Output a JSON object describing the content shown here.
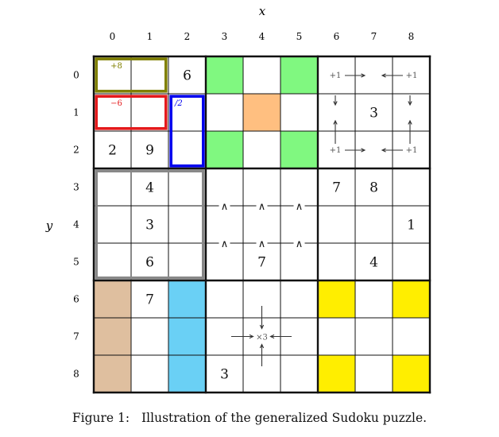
{
  "axes": {
    "x_label": "x",
    "y_label": "y",
    "col_labels": [
      "0",
      "1",
      "2",
      "3",
      "4",
      "5",
      "6",
      "7",
      "8"
    ],
    "row_labels": [
      "0",
      "1",
      "2",
      "3",
      "4",
      "5",
      "6",
      "7",
      "8"
    ]
  },
  "givens": [
    {
      "r": 0,
      "c": 2,
      "v": "6"
    },
    {
      "r": 1,
      "c": 7,
      "v": "3"
    },
    {
      "r": 2,
      "c": 0,
      "v": "2"
    },
    {
      "r": 2,
      "c": 1,
      "v": "9"
    },
    {
      "r": 3,
      "c": 1,
      "v": "4"
    },
    {
      "r": 3,
      "c": 6,
      "v": "7"
    },
    {
      "r": 3,
      "c": 7,
      "v": "8"
    },
    {
      "r": 4,
      "c": 1,
      "v": "3"
    },
    {
      "r": 4,
      "c": 8,
      "v": "1"
    },
    {
      "r": 5,
      "c": 1,
      "v": "6"
    },
    {
      "r": 5,
      "c": 4,
      "v": "7"
    },
    {
      "r": 5,
      "c": 7,
      "v": "4"
    },
    {
      "r": 6,
      "c": 1,
      "v": "7"
    },
    {
      "r": 8,
      "c": 3,
      "v": "3"
    }
  ],
  "colored_cells": [
    {
      "r": 0,
      "c": 3,
      "color": "#80f880"
    },
    {
      "r": 0,
      "c": 5,
      "color": "#80f880"
    },
    {
      "r": 2,
      "c": 3,
      "color": "#80f880"
    },
    {
      "r": 2,
      "c": 5,
      "color": "#80f880"
    },
    {
      "r": 1,
      "c": 4,
      "color": "#ffbf80"
    },
    {
      "r": 6,
      "c": 0,
      "color": "#dfbf9f"
    },
    {
      "r": 7,
      "c": 0,
      "color": "#dfbf9f"
    },
    {
      "r": 8,
      "c": 0,
      "color": "#dfbf9f"
    },
    {
      "r": 6,
      "c": 2,
      "color": "#6ad0f5"
    },
    {
      "r": 7,
      "c": 2,
      "color": "#6ad0f5"
    },
    {
      "r": 8,
      "c": 2,
      "color": "#6ad0f5"
    },
    {
      "r": 6,
      "c": 6,
      "color": "#ffee00"
    },
    {
      "r": 6,
      "c": 8,
      "color": "#ffee00"
    },
    {
      "r": 8,
      "c": 6,
      "color": "#ffee00"
    },
    {
      "r": 8,
      "c": 8,
      "color": "#ffee00"
    }
  ],
  "cages": [
    {
      "r0": 0,
      "c0": 0,
      "r1": 0,
      "c1": 1,
      "color": "#808000",
      "label": "+8",
      "label_color": "#808000"
    },
    {
      "r0": 1,
      "c0": 0,
      "r1": 1,
      "c1": 1,
      "color": "#e41a1c",
      "label": "−6",
      "label_color": "#e41a1c"
    },
    {
      "r0": 1,
      "c0": 2,
      "r1": 2,
      "c1": 2,
      "color": "#0000ee",
      "label": "/2",
      "label_color": "#0000ee"
    },
    {
      "r0": 3,
      "c0": 0,
      "r1": 5,
      "c1": 2,
      "color": "#888888",
      "label": "",
      "label_color": "#888888"
    }
  ],
  "corner_clues": {
    "label": "+1",
    "color": "#555555"
  },
  "inequality_symbol": "∧",
  "center_clue": {
    "label": "×3",
    "color": "#555555"
  },
  "caption": {
    "label": "Figure 1:",
    "text": "Illustration of the generalized Sudoku puzzle."
  }
}
